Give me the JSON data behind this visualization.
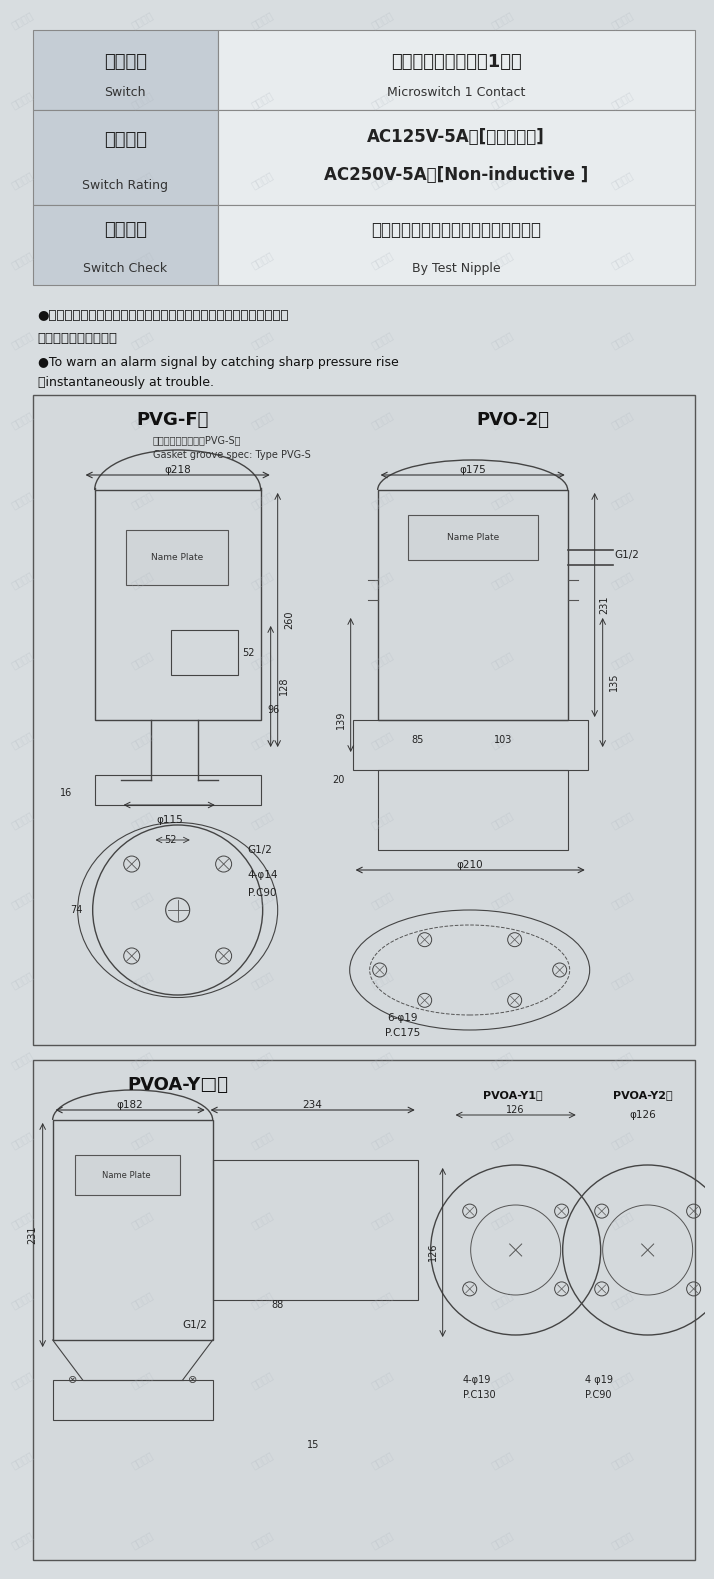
{
  "bg_color": "#d8dde0",
  "table_bg": "#c8d0d8",
  "white_bg": "#f0f0f0",
  "row1": {
    "left_jp": "接　　点",
    "left_en": "Switch",
    "right_line1_jp": "マイクロスイッチ　1接点",
    "right_line1_en": "Microswitch 1 Contact"
  },
  "row2": {
    "left_jp": "接点定格",
    "left_en": "Switch Rating",
    "right_line1": "AC125V-5A　[抵抗負荷　]",
    "right_line2": "AC250V-5A　[Non-inductive ]"
  },
  "row3": {
    "left_jp": "点検機構",
    "left_en": "Switch Check",
    "right_line1_jp": "点検ニップル付（外部より点検可能）",
    "right_line1_en": "By Test Nipple"
  },
  "bullet1_jp": "●異常時の急激な圧力上昇を瞬時にキャッチして電気接点を動作させ\n　て信号を出します。",
  "bullet1_en": "●To warn an alarm signal by catching sharp pressure rise\n　instantaneously at trouble.",
  "diagram1_title": "PVG-F型",
  "diagram1_subtitle1": "ガスケット溝付き：PVG-S型",
  "diagram1_subtitle2": "Gasket groove spec: Type PVG-S",
  "diagram2_title": "PVO-2型",
  "diagram3_title": "PVOA-Y□型",
  "diagram3_sub1": "PVOA-Y1型",
  "diagram3_sub2": "PVOA-Y2型"
}
